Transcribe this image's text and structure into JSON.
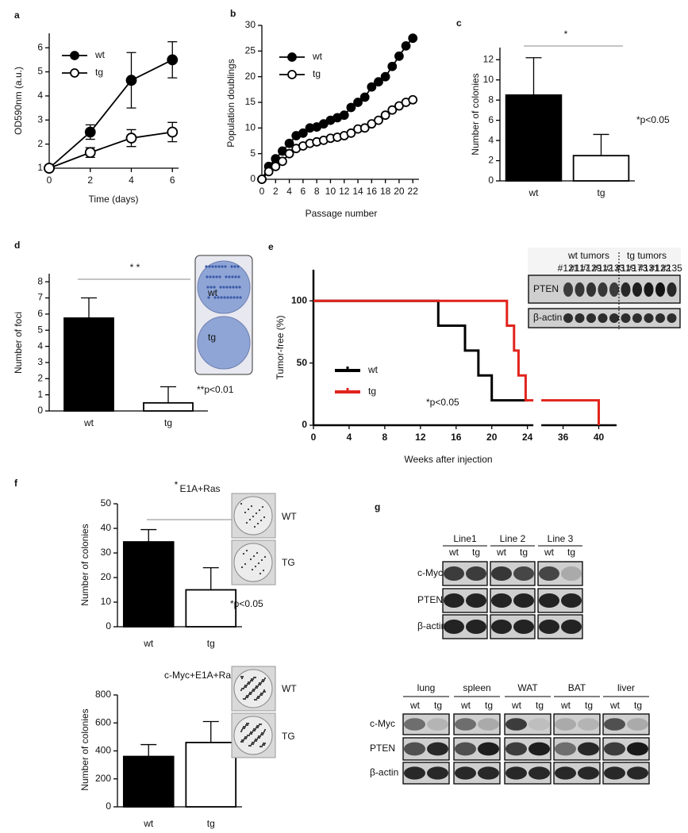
{
  "chart_data": [
    {
      "type": "line",
      "panel": "a",
      "xlabel": "Time (days)",
      "ylabel": "OD590nm (a.u.)",
      "x": [
        0,
        2,
        4,
        6
      ],
      "xlim": [
        0,
        6.3
      ],
      "xticks": [
        0,
        2,
        4,
        6
      ],
      "ylim": [
        1,
        6.6
      ],
      "yticks": [
        1,
        2,
        3,
        4,
        5,
        6
      ],
      "legend": true,
      "markers": true,
      "series": [
        {
          "name": "wt",
          "color": "#000000",
          "marker_fill": "#000000",
          "values": [
            1,
            2.5,
            4.65,
            5.5
          ],
          "errors": [
            0,
            0.3,
            1.15,
            0.75
          ]
        },
        {
          "name": "tg",
          "color": "#000000",
          "marker_fill": "#ffffff",
          "values": [
            1,
            1.65,
            2.25,
            2.5
          ],
          "errors": [
            0,
            0.2,
            0.35,
            0.4
          ]
        }
      ]
    },
    {
      "type": "line",
      "panel": "b",
      "xlabel": "Passage number",
      "ylabel": "Population doublings",
      "x": [
        0,
        1,
        2,
        3,
        4,
        5,
        6,
        7,
        8,
        9,
        10,
        11,
        12,
        13,
        14,
        15,
        16,
        17,
        18,
        19,
        20,
        21,
        22
      ],
      "xlim": [
        0,
        22.9
      ],
      "xticks": [
        0,
        2,
        4,
        6,
        8,
        10,
        12,
        14,
        16,
        18,
        20,
        22
      ],
      "ylim": [
        0,
        30
      ],
      "yticks": [
        0,
        5,
        10,
        15,
        20,
        25,
        30
      ],
      "legend": true,
      "markers": true,
      "series": [
        {
          "name": "wt",
          "color": "#000000",
          "marker_fill": "#000000",
          "values": [
            0,
            2.5,
            4,
            5.5,
            7,
            8.5,
            9,
            10,
            10.2,
            10.8,
            11.5,
            12,
            12.5,
            14,
            15,
            16,
            18,
            19,
            20,
            22,
            24,
            26,
            27.5
          ]
        },
        {
          "name": "tg",
          "color": "#000000",
          "marker_fill": "#ffffff",
          "values": [
            0,
            1.5,
            2.5,
            3.5,
            5,
            6,
            6.5,
            7,
            7.3,
            7.6,
            8,
            8.2,
            8.5,
            9,
            9.8,
            10,
            10.8,
            11.5,
            12.5,
            13.5,
            14.3,
            15,
            15.5
          ]
        }
      ]
    },
    {
      "type": "bar",
      "panel": "c",
      "ylabel": "Number of colonies",
      "categories": [
        "wt",
        "tg"
      ],
      "values": [
        8.5,
        2.5
      ],
      "errors": [
        3.7,
        2.1
      ],
      "colors": [
        "#000000",
        "#ffffff"
      ],
      "ylim": [
        0,
        13.2
      ],
      "yticks": [
        0,
        2,
        4,
        6,
        8,
        10,
        12
      ],
      "annotations": [
        "*",
        "*p<0.05"
      ]
    },
    {
      "type": "bar",
      "panel": "d",
      "ylabel": "Number of foci",
      "categories": [
        "wt",
        "tg"
      ],
      "values": [
        5.75,
        0.5
      ],
      "errors": [
        1.25,
        1.0
      ],
      "colors": [
        "#000000",
        "#ffffff"
      ],
      "ylim": [
        0,
        8.5
      ],
      "yticks": [
        0,
        1,
        2,
        3,
        4,
        5,
        6,
        7,
        8
      ],
      "annotations": [
        "* *",
        "**p<0.01"
      ],
      "inset_labels": [
        "wt",
        "tg"
      ]
    },
    {
      "type": "line",
      "panel": "e",
      "xlabel": "Weeks after injection",
      "ylabel": "Tumor-free (%)",
      "xlim": [
        0,
        42
      ],
      "x_break": [
        26,
        34
      ],
      "xticks": [
        0,
        4,
        8,
        12,
        16,
        20,
        24,
        36,
        40
      ],
      "ylim": [
        0,
        125
      ],
      "yticks": [
        0,
        50,
        100
      ],
      "legend": true,
      "annotations": [
        "*p<0.05"
      ],
      "series": [
        {
          "name": "wt",
          "color": "#000000",
          "x": [
            0,
            14,
            14,
            17,
            17,
            18.5,
            18.5,
            20,
            20,
            24
          ],
          "values": [
            100,
            100,
            80,
            80,
            60,
            60,
            40,
            40,
            20,
            20
          ]
        },
        {
          "name": "tg",
          "color": "#e0231c",
          "x": [
            0,
            21.7,
            21.7,
            22.5,
            22.5,
            23,
            23,
            23.8,
            23.8,
            40,
            40
          ],
          "values": [
            100,
            100,
            80,
            80,
            60,
            60,
            40,
            40,
            20,
            20,
            0
          ]
        }
      ]
    },
    {
      "type": "bar",
      "panel": "f",
      "title": "E1A+Ras",
      "ylabel": "Number of colonies",
      "categories": [
        "wt",
        "tg"
      ],
      "values": [
        34.5,
        15
      ],
      "errors": [
        5,
        9
      ],
      "colors": [
        "#000000",
        "#ffffff"
      ],
      "ylim": [
        0,
        50
      ],
      "yticks": [
        0,
        10,
        20,
        30,
        40,
        50
      ],
      "annotations": [
        "*",
        "*p<0.05"
      ],
      "inset_labels": [
        "WT",
        "TG"
      ]
    },
    {
      "type": "bar",
      "title": "c-Myc+E1A+Ras",
      "ylabel": "Number of colonies",
      "categories": [
        "wt",
        "tg"
      ],
      "values": [
        360,
        460
      ],
      "errors": [
        85,
        150
      ],
      "colors": [
        "#000000",
        "#ffffff"
      ],
      "ylim": [
        0,
        800
      ],
      "yticks": [
        0,
        200,
        400,
        600,
        800
      ],
      "inset_labels": [
        "WT",
        "TG"
      ]
    }
  ],
  "blot_e": {
    "groups": [
      "wt tumors",
      "tg tumors"
    ],
    "samples": [
      "#121",
      "#117",
      "#129",
      "#112",
      "#133",
      "#119",
      "#173",
      "#131",
      "#122",
      "#135"
    ],
    "rows": [
      "PTEN",
      "β-actin"
    ]
  },
  "blot_g": {
    "panel": "g",
    "lines": [
      "Line1",
      "Line 2",
      "Line 3"
    ],
    "genotypes": [
      "wt",
      "tg"
    ],
    "rows": [
      "c-Myc",
      "PTEN",
      "β-actin"
    ],
    "tissues": [
      "lung",
      "spleen",
      "WAT",
      "BAT",
      "liver"
    ]
  }
}
